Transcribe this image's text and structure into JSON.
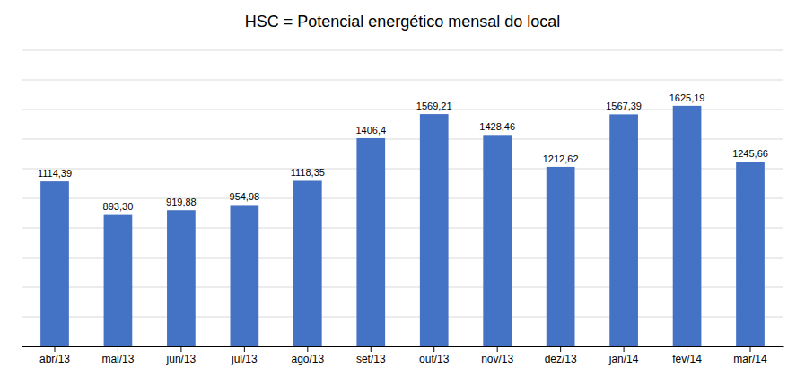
{
  "chart_data": {
    "type": "bar",
    "title": "HSC = Potencial energético mensal do local",
    "categories": [
      "abr/13",
      "mai/13",
      "jun/13",
      "jul/13",
      "ago/13",
      "set/13",
      "out/13",
      "nov/13",
      "dez/13",
      "jan/14",
      "fev/14",
      "mar/14"
    ],
    "values": [
      1114.39,
      893.3,
      919.88,
      954.98,
      1118.35,
      1406.4,
      1569.21,
      1428.46,
      1212.62,
      1567.39,
      1625.19,
      1245.66
    ],
    "value_labels": [
      "1114,39",
      "893,30",
      "919,88",
      "954,98",
      "1118,35",
      "1406,4",
      "1569,21",
      "1428,46",
      "1212,62",
      "1567,39",
      "1625,19",
      "1245,66"
    ],
    "color": "#4472c4",
    "ylim": [
      0,
      2000
    ],
    "yticks": [
      0,
      200,
      400,
      600,
      800,
      1000,
      1200,
      1400,
      1600,
      1800,
      2000
    ],
    "grid": true,
    "data_labels": true,
    "tick_labels": "x"
  }
}
